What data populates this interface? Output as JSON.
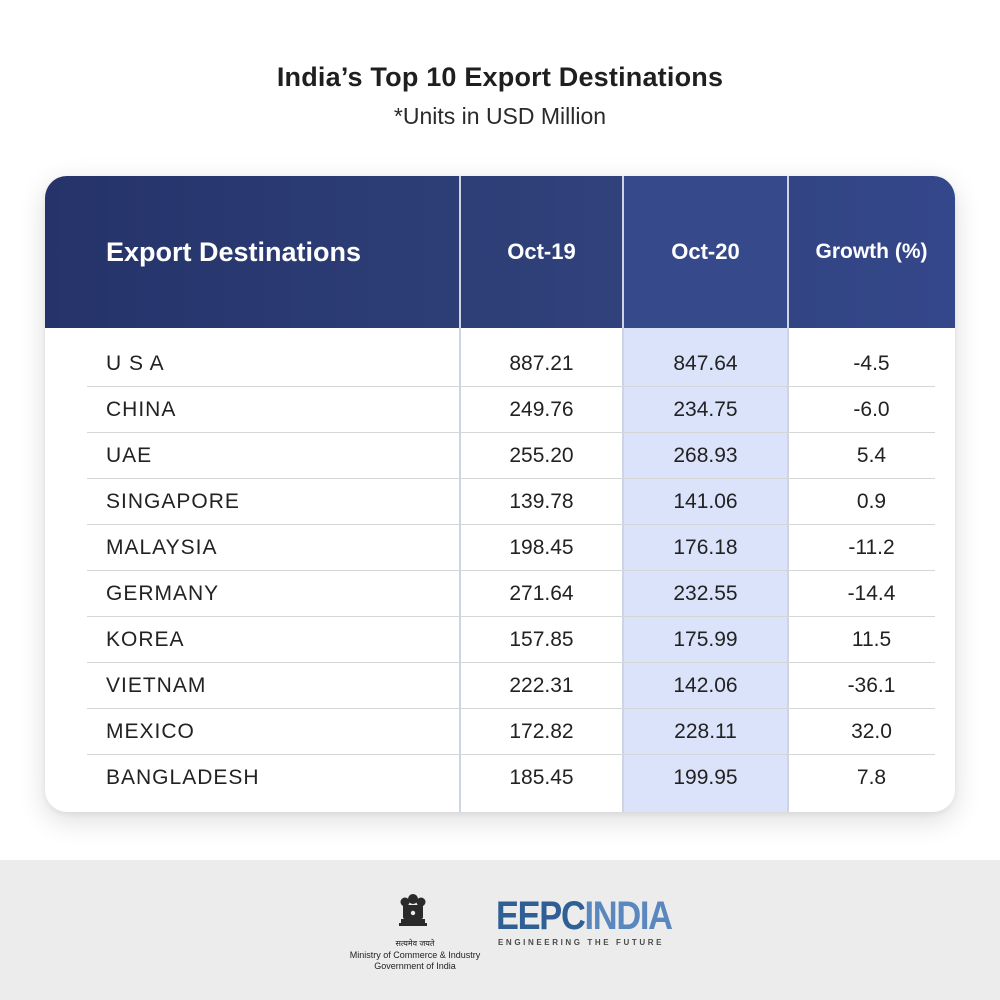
{
  "chart_data": {
    "type": "table",
    "title": "India’s Top 10 Export Destinations",
    "subtitle": "*Units in USD Million",
    "columns": [
      "Export Destinations",
      "Oct-19",
      "Oct-20",
      "Growth (%)"
    ],
    "rows": [
      [
        "U S A",
        "887.21",
        "847.64",
        "-4.5"
      ],
      [
        "CHINA",
        "249.76",
        "234.75",
        "-6.0"
      ],
      [
        "UAE",
        "255.20",
        "268.93",
        "5.4"
      ],
      [
        "SINGAPORE",
        "139.78",
        "141.06",
        "0.9"
      ],
      [
        "MALAYSIA",
        "198.45",
        "176.18",
        "-11.2"
      ],
      [
        "GERMANY",
        "271.64",
        "232.55",
        "-14.4"
      ],
      [
        "KOREA",
        "157.85",
        "175.99",
        "11.5"
      ],
      [
        "VIETNAM",
        "222.31",
        "142.06",
        "-36.1"
      ],
      [
        "MEXICO",
        "172.82",
        "228.11",
        "32.0"
      ],
      [
        "BANGLADESH",
        "185.45",
        "199.95",
        "7.8"
      ]
    ],
    "highlight_column": "Oct-20"
  },
  "footer": {
    "emblem_text": "सत्यमेव जयते",
    "ministry_line1": "Ministry of Commerce & Industry",
    "ministry_line2": "Government of India",
    "logo_part1": "EEPC",
    "logo_part2": "INDIA",
    "logo_tagline": "ENGINEERING THE FUTURE"
  },
  "colors": {
    "header_dark": "#25336a",
    "header_light": "#34478a",
    "highlight": "#dbe3fb",
    "eepc_dark": "#2f5f95",
    "eepc_light": "#5b87bf"
  }
}
